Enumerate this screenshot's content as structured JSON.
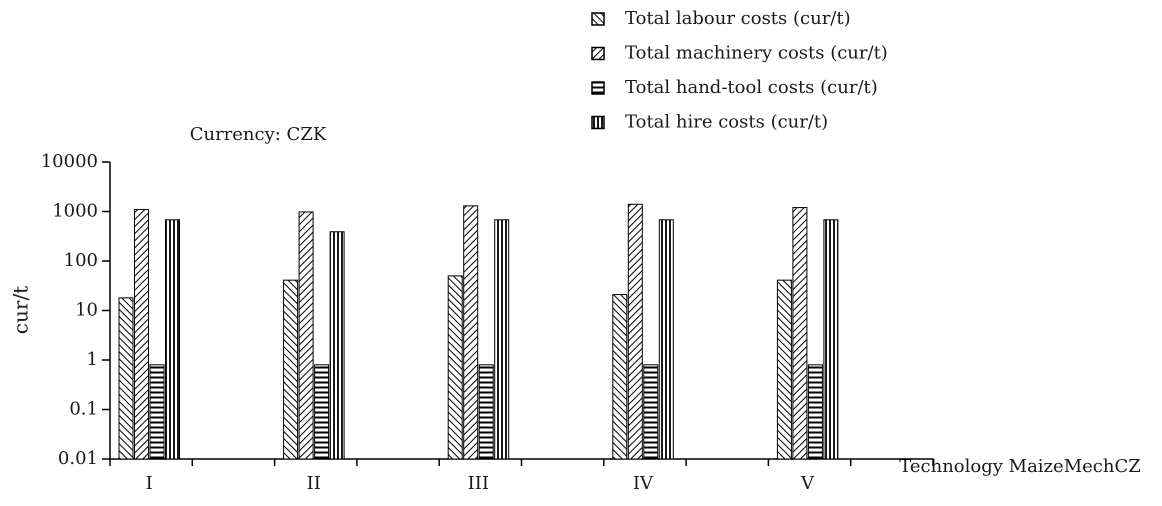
{
  "chart_data": {
    "type": "bar",
    "log_scale": true,
    "annotation": "Currency: CZK",
    "xlabel": "Technology MaizeMechCZ",
    "ylabel": "cur/t",
    "categories": [
      "I",
      "II",
      "III",
      "IV",
      "V"
    ],
    "series": [
      {
        "name": "Total labour costs (cur/t)",
        "color": "#000000",
        "pattern": "back-diagonal",
        "values": [
          18,
          41,
          50,
          21,
          41
        ]
      },
      {
        "name": "Total machinery costs (cur/t)",
        "color": "#000000",
        "pattern": "forward-diagonal",
        "values": [
          1100,
          980,
          1300,
          1400,
          1200
        ]
      },
      {
        "name": "Total hand-tool costs (cur/t)",
        "color": "#000000",
        "pattern": "horizontal",
        "values": [
          0.8,
          0.8,
          0.8,
          0.8,
          0.8
        ]
      },
      {
        "name": "Total hire costs (cur/t)",
        "color": "#000000",
        "pattern": "vertical",
        "values": [
          680,
          390,
          680,
          680,
          680
        ]
      }
    ],
    "ylim": [
      0.01,
      10000
    ],
    "yticks": [
      10000,
      1000,
      100,
      10,
      1,
      0.1,
      0.01
    ],
    "legend": "top-right"
  }
}
